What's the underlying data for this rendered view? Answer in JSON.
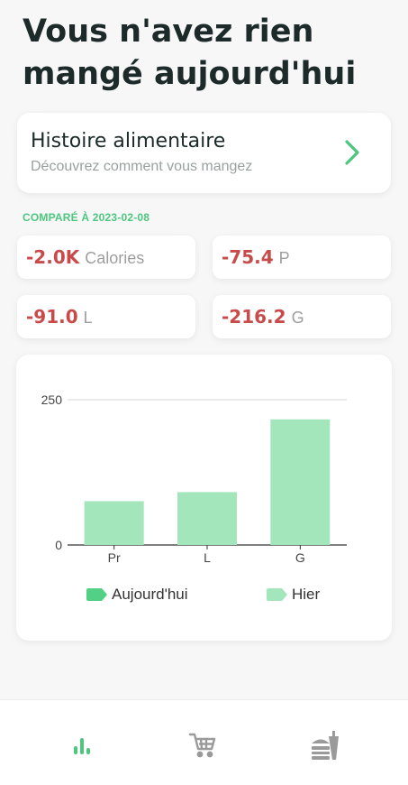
{
  "header": {
    "line1": "Vous n'avez rien",
    "line2": "mangé aujourd'hui"
  },
  "history_card": {
    "title": "Histoire alimentaire",
    "subtitle": "Découvrez comment vous mangez",
    "icon": "chevron-right-icon"
  },
  "comparison": {
    "label": "COMPARÉ À 2023-02-08",
    "stats": [
      {
        "value": "-2.0K",
        "unit": "Calories"
      },
      {
        "value": "-75.4",
        "unit": "P"
      },
      {
        "value": "-91.0",
        "unit": "L"
      },
      {
        "value": "-216.2",
        "unit": "G"
      }
    ]
  },
  "chart_data": {
    "type": "bar",
    "categories": [
      "Pr",
      "L",
      "G"
    ],
    "series": [
      {
        "name": "Aujourd'hui",
        "values": [
          0,
          0,
          0
        ],
        "color": "#52d184"
      },
      {
        "name": "Hier",
        "values": [
          75.4,
          91.0,
          216.2
        ],
        "color": "#a3e6bc"
      }
    ],
    "ylim": [
      0,
      250
    ],
    "yticks": [
      0,
      250
    ],
    "legend_position": "bottom"
  },
  "colors": {
    "accent": "#4cc77e",
    "negative": "#c94a4a"
  },
  "bottom_nav": [
    {
      "icon": "stats-bars-icon",
      "active": true
    },
    {
      "icon": "cart-icon",
      "active": false
    },
    {
      "icon": "food-icon",
      "active": false
    }
  ]
}
